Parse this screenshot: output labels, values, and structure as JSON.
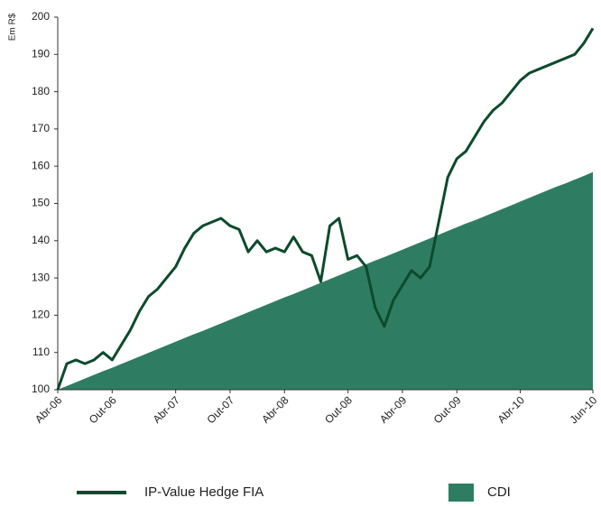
{
  "chart_data": {
    "type": "line_area",
    "y_label": "Em R$",
    "categories": [
      "Abr-06",
      null,
      null,
      null,
      null,
      null,
      "Out-06",
      null,
      null,
      null,
      null,
      null,
      null,
      "Abr-07",
      null,
      null,
      null,
      null,
      null,
      "Out-07",
      null,
      null,
      null,
      null,
      null,
      "Abr-08",
      null,
      null,
      null,
      null,
      null,
      null,
      "Out-08",
      null,
      null,
      null,
      null,
      null,
      "Abr-09",
      null,
      null,
      null,
      null,
      null,
      "Out-09",
      null,
      null,
      null,
      null,
      null,
      null,
      "Abr-10",
      null,
      null,
      null,
      null,
      null,
      null,
      null,
      "Jun-10"
    ],
    "series": [
      {
        "name": "IP-Value Hedge FIA",
        "kind": "line",
        "color": "#0d4a2e",
        "values": [
          100,
          107,
          108,
          107,
          108,
          110,
          108,
          112,
          116,
          121,
          125,
          127,
          130,
          133,
          138,
          142,
          144,
          145,
          146,
          144,
          143,
          137,
          140,
          137,
          138,
          137,
          141,
          137,
          136,
          129,
          144,
          146,
          135,
          136,
          133,
          122,
          117,
          124,
          128,
          132,
          130,
          133,
          145,
          157,
          162,
          164,
          168,
          172,
          175,
          177,
          180,
          183,
          185,
          186,
          187,
          188,
          189,
          190,
          193,
          197
        ]
      },
      {
        "name": "CDI",
        "kind": "area",
        "color": "#2e7d62",
        "values": [
          100,
          101,
          102,
          103,
          104,
          105,
          105.9,
          106.9,
          107.9,
          108.9,
          109.9,
          110.9,
          111.9,
          112.9,
          113.9,
          114.9,
          115.8,
          116.8,
          117.8,
          118.8,
          119.8,
          120.8,
          121.8,
          122.8,
          123.8,
          124.8,
          125.7,
          126.7,
          127.7,
          128.7,
          129.7,
          130.7,
          131.7,
          132.7,
          133.7,
          134.7,
          135.6,
          136.6,
          137.6,
          138.6,
          139.6,
          140.6,
          141.6,
          142.6,
          143.6,
          144.6,
          145.5,
          146.5,
          147.5,
          148.5,
          149.5,
          150.5,
          151.5,
          152.5,
          153.5,
          154.5,
          155.4,
          156.4,
          157.4,
          158.4
        ]
      }
    ],
    "ylim": [
      100,
      200
    ],
    "yticks": [
      100,
      110,
      120,
      130,
      140,
      150,
      160,
      170,
      180,
      190,
      200
    ]
  }
}
